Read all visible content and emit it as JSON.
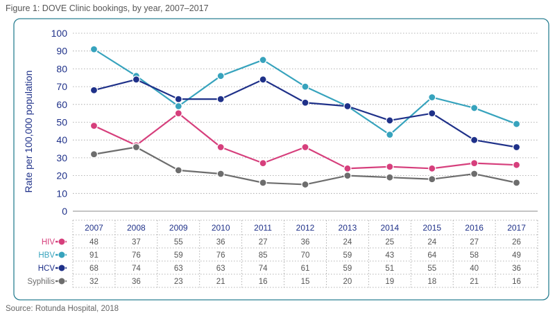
{
  "figure": {
    "title": "Figure 1: DOVE Clinic bookings, by year, 2007–2017",
    "source": "Source: Rotunda Hospital, 2018"
  },
  "colors": {
    "HIV": "#d63f7c",
    "HBV": "#37a3bd",
    "HCV": "#1f3189",
    "Syphilis": "#6d6d6d",
    "frame": "#2a7f92",
    "grid": "#9a9a9a"
  },
  "chart_data": {
    "type": "line",
    "title": "",
    "xlabel": "",
    "ylabel": "Rate per 100,000 population",
    "ylim": [
      0,
      100
    ],
    "yticks": [
      0,
      10,
      20,
      30,
      40,
      50,
      60,
      70,
      80,
      90,
      100
    ],
    "grid": true,
    "legend": "table-left",
    "categories": [
      "2007",
      "2008",
      "2009",
      "2010",
      "2011",
      "2012",
      "2013",
      "2014",
      "2015",
      "2016",
      "2017"
    ],
    "series": [
      {
        "name": "HIV",
        "values": [
          48,
          37,
          55,
          36,
          27,
          36,
          24,
          25,
          24,
          27,
          26
        ]
      },
      {
        "name": "HBV",
        "values": [
          91,
          76,
          59,
          76,
          85,
          70,
          59,
          43,
          64,
          58,
          49
        ]
      },
      {
        "name": "HCV",
        "values": [
          68,
          74,
          63,
          63,
          74,
          61,
          59,
          51,
          55,
          40,
          36
        ]
      },
      {
        "name": "Syphilis",
        "values": [
          32,
          36,
          23,
          21,
          16,
          15,
          20,
          19,
          18,
          21,
          16
        ]
      }
    ]
  }
}
